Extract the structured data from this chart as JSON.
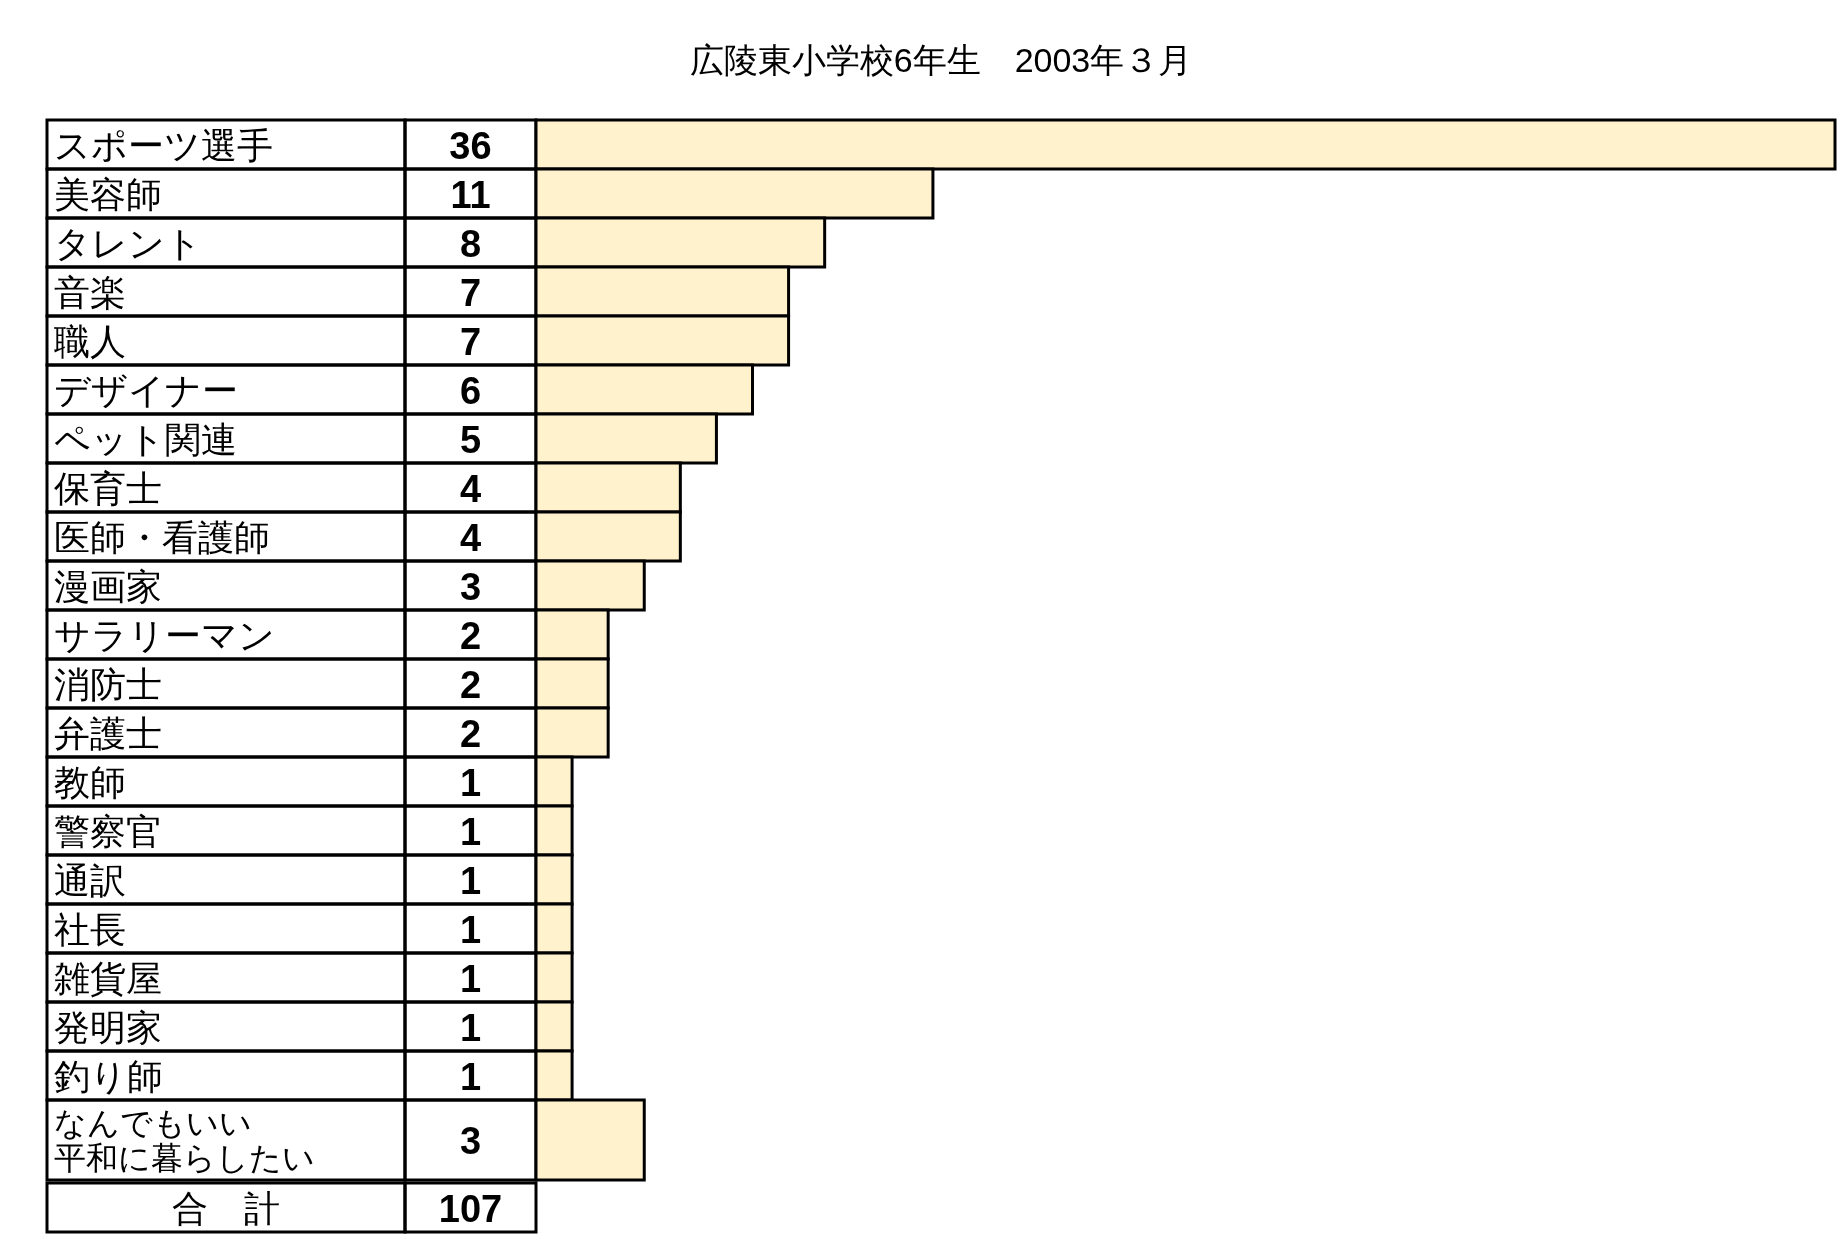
{
  "chart_data": {
    "type": "bar",
    "orientation": "horizontal",
    "title": "広陵東小学校6年生　2003年３月",
    "categories": [
      "スポーツ選手",
      "美容師",
      "タレント",
      "音楽",
      "職人",
      "デザイナー",
      "ペット関連",
      "保育士",
      "医師・看護師",
      "漫画家",
      "サラリーマン",
      "消防士",
      "弁護士",
      "教師",
      "警察官",
      "通訳",
      "社長",
      "雑貨屋",
      "発明家",
      "釣り師",
      "なんでもいい平和に暮らしたい"
    ],
    "values": [
      36,
      11,
      8,
      7,
      7,
      6,
      5,
      4,
      4,
      3,
      2,
      2,
      2,
      1,
      1,
      1,
      1,
      1,
      1,
      1,
      3
    ],
    "color": "#fff2cc",
    "data_labels": true,
    "annotations": [
      "合　計",
      "107"
    ]
  }
}
